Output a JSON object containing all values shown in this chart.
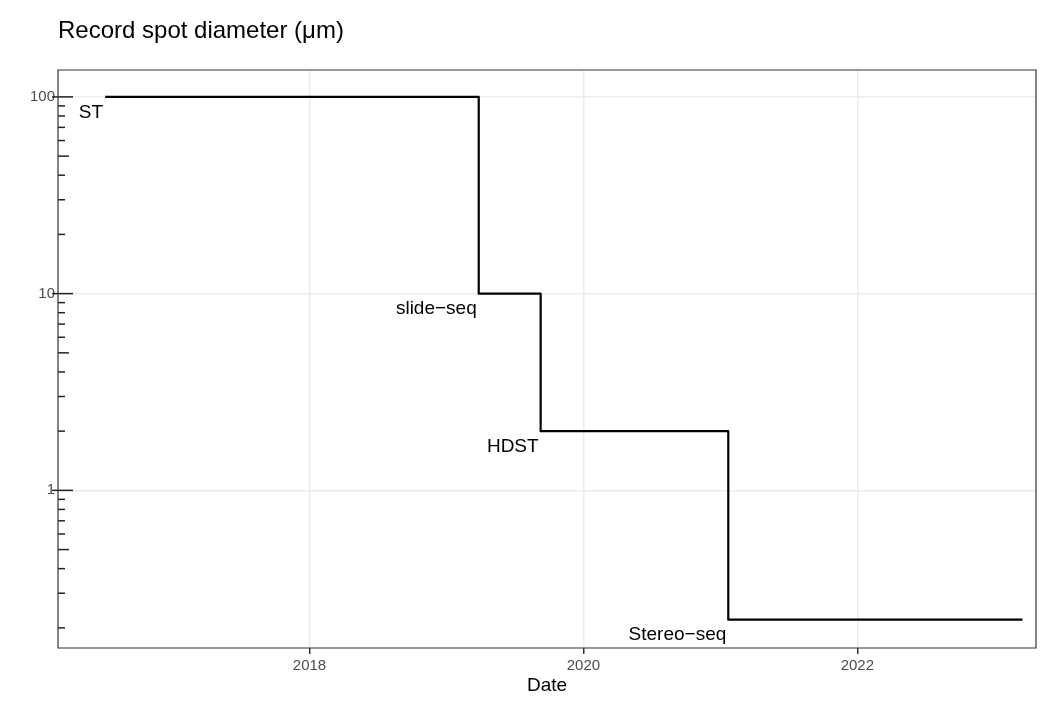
{
  "chart_data": {
    "type": "step",
    "title": "Record spot diameter (μm)",
    "xlabel": "Date",
    "x": [
      "2016-07-05",
      "2019-03-28",
      "2019-09-09",
      "2021-01-22",
      "2023-03-17"
    ],
    "series": [
      {
        "color": "#000000",
        "values": [
          100,
          10,
          2,
          0.22,
          0.22
        ]
      }
    ],
    "log": "y",
    "xlim": [
      "2016-03-01",
      "2023-04-22"
    ],
    "xticks": [
      "2018",
      "2020",
      "2022"
    ],
    "ylim": [
      0.158,
      137
    ],
    "yticks": [
      {
        "value": 0.2,
        "label": null
      },
      {
        "value": 0.3,
        "label": null
      },
      {
        "value": 0.4,
        "label": null
      },
      {
        "value": 0.5,
        "label": null
      },
      {
        "value": 0.6,
        "label": null
      },
      {
        "value": 0.7,
        "label": null
      },
      {
        "value": 0.8,
        "label": null
      },
      {
        "value": 0.9,
        "label": null
      },
      1,
      {
        "value": 2,
        "label": null
      },
      {
        "value": 3,
        "label": null
      },
      {
        "value": 4,
        "label": null
      },
      {
        "value": 5,
        "label": null
      },
      {
        "value": 6,
        "label": null
      },
      {
        "value": 7,
        "label": null
      },
      {
        "value": 8,
        "label": null
      },
      {
        "value": 9,
        "label": null
      },
      10,
      {
        "value": 20,
        "label": null
      },
      {
        "value": 30,
        "label": null
      },
      {
        "value": 40,
        "label": null
      },
      {
        "value": 50,
        "label": null
      },
      {
        "value": 60,
        "label": null
      },
      {
        "value": 70,
        "label": null
      },
      {
        "value": 80,
        "label": null
      },
      {
        "value": 90,
        "label": null
      },
      100
    ],
    "grid": true,
    "marker": "none",
    "line_style": "solid",
    "annotations": [
      {
        "text": "ST",
        "x": "2016-07-05",
        "y": 100
      },
      {
        "text": "slide−seq",
        "x": "2019-03-28",
        "y": 10
      },
      {
        "text": "HDST",
        "x": "2019-09-09",
        "y": 2
      },
      {
        "text": "Stereo−seq",
        "x": "2021-01-22",
        "y": 0.22
      }
    ]
  }
}
